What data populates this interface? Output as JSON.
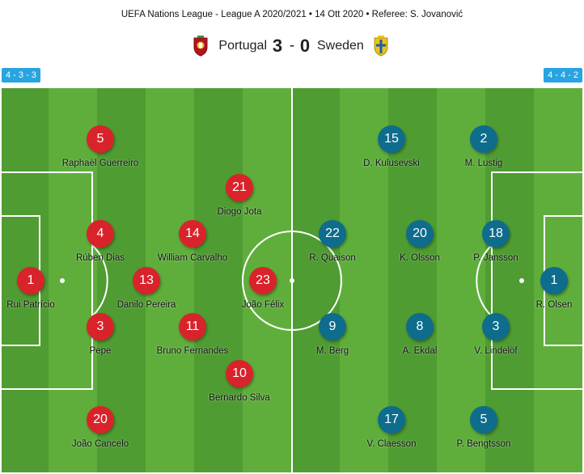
{
  "header": {
    "competition_line": "UEFA Nations League - League A 2020/2021 • 14 Ott 2020 • Referee: S. Jovanović"
  },
  "match": {
    "home_team": "Portugal",
    "away_team": "Sweden",
    "home_score": "3",
    "away_score": "0",
    "separator": "-"
  },
  "formations": {
    "home": "4 - 3 - 3",
    "away": "4 - 4 - 2"
  },
  "colors": {
    "home": "#d9232a",
    "away": "#0e6c8c",
    "badge": "#28a4e0",
    "pitch_light": "#5fae3c",
    "pitch_dark": "#4f9c32"
  },
  "icons": {
    "home_crest": "portugal-crest-icon",
    "away_crest": "sweden-crest-icon"
  },
  "home_players": [
    {
      "number": "1",
      "name": "Rui Patrício"
    },
    {
      "number": "5",
      "name": "Raphaël Guerreiro"
    },
    {
      "number": "4",
      "name": "Rúben Dias"
    },
    {
      "number": "3",
      "name": "Pepe"
    },
    {
      "number": "20",
      "name": "João Cancelo"
    },
    {
      "number": "14",
      "name": "William Carvalho"
    },
    {
      "number": "13",
      "name": "Danilo Pereira"
    },
    {
      "number": "11",
      "name": "Bruno Fernandes"
    },
    {
      "number": "21",
      "name": "Diogo Jota"
    },
    {
      "number": "23",
      "name": "João Félix"
    },
    {
      "number": "10",
      "name": "Bernardo Silva"
    }
  ],
  "away_players": [
    {
      "number": "1",
      "name": "R. Olsen"
    },
    {
      "number": "2",
      "name": "M. Lustig"
    },
    {
      "number": "18",
      "name": "P. Jansson"
    },
    {
      "number": "3",
      "name": "V. Lindelöf"
    },
    {
      "number": "5",
      "name": "P. Bengtsson"
    },
    {
      "number": "15",
      "name": "D. Kulusevski"
    },
    {
      "number": "8",
      "name": "A. Ekdal"
    },
    {
      "number": "20",
      "name": "K. Olsson"
    },
    {
      "number": "17",
      "name": "V. Claesson"
    },
    {
      "number": "22",
      "name": "R. Quaison"
    },
    {
      "number": "9",
      "name": "M. Berg"
    }
  ]
}
